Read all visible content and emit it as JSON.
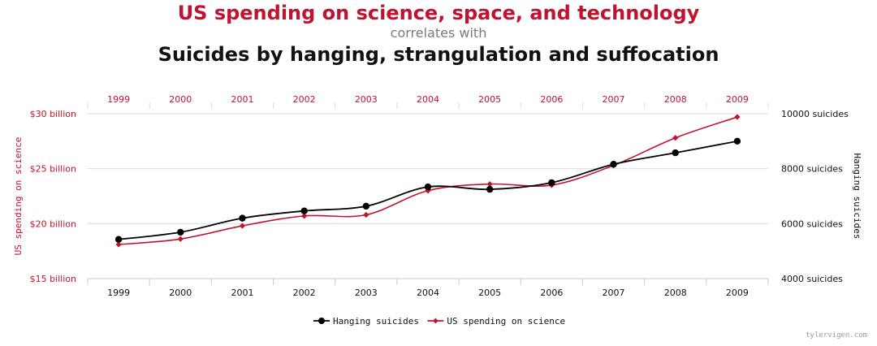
{
  "titles": {
    "line1": "US spending on science, space, and technology",
    "line2": "correlates with",
    "line3": "Suicides by hanging, strangulation and suffocation"
  },
  "credit": "tylervigen.com",
  "colors": {
    "spending": "#c0132f",
    "suicides": "#000000",
    "grid": "#d9dce8"
  },
  "chart_data": {
    "type": "line",
    "x": [
      1999,
      2000,
      2001,
      2002,
      2003,
      2004,
      2005,
      2006,
      2007,
      2008,
      2009
    ],
    "left_axis": {
      "label": "US spending on science",
      "range": [
        15,
        30
      ],
      "ticks": [
        30,
        25,
        20,
        15
      ],
      "tick_labels": [
        "$30 billion",
        "$25 billion",
        "$20 billion",
        "$15 billion"
      ]
    },
    "right_axis": {
      "label": "Hanging suicides",
      "range": [
        4000,
        10000
      ],
      "ticks": [
        10000,
        8000,
        6000,
        4000
      ],
      "tick_labels": [
        "10000 suicides",
        "8000 suicides",
        "6000 suicides",
        "4000 suicides"
      ]
    },
    "series": [
      {
        "name": "Hanging suicides",
        "axis": "right",
        "marker": "circle",
        "values": [
          5427,
          5688,
          6198,
          6462,
          6635,
          7336,
          7248,
          7491,
          8161,
          8578,
          9000
        ]
      },
      {
        "name": "US spending on science",
        "axis": "left",
        "marker": "diamond",
        "values": [
          18.1,
          18.6,
          19.8,
          20.7,
          20.8,
          23.0,
          23.6,
          23.5,
          25.3,
          27.8,
          29.7
        ]
      }
    ],
    "legend": "bottom-center"
  }
}
